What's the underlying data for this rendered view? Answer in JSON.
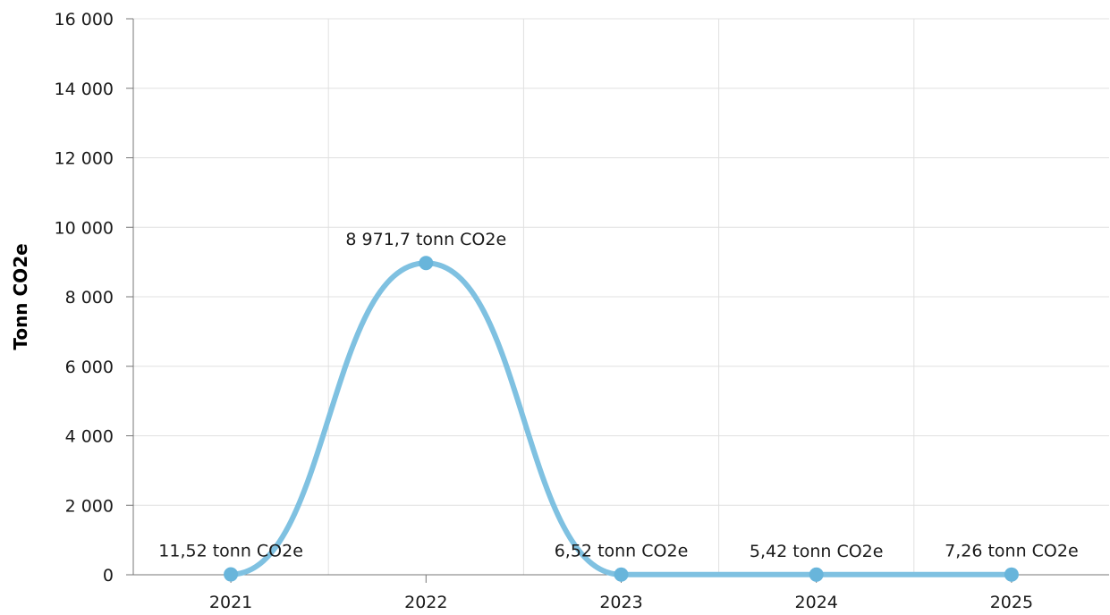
{
  "chart_data": {
    "type": "line",
    "title": "",
    "xlabel": "",
    "ylabel": "Tonn CO2e",
    "categories": [
      "2021",
      "2022",
      "2023",
      "2024",
      "2025"
    ],
    "series": [
      {
        "values": [
          11.52,
          8971.7,
          6.52,
          5.42,
          7.26
        ],
        "data_labels": [
          "11,52 tonn CO2e",
          "8 971,7 tonn CO2e",
          "6,52 tonn CO2e",
          "5,42 tonn CO2e",
          "7,26 tonn CO2e"
        ],
        "color": "#7fc1e1",
        "marker_color": "#68b5db"
      }
    ],
    "ylim": [
      0,
      16000
    ],
    "yticks": [
      0,
      2000,
      4000,
      6000,
      8000,
      10000,
      12000,
      14000,
      16000
    ],
    "ytick_labels": [
      "0",
      "2 000",
      "4 000",
      "6 000",
      "8 000",
      "10 000",
      "12 000",
      "14 000",
      "16 000"
    ],
    "grid": true,
    "smooth": true,
    "legend": "none"
  }
}
